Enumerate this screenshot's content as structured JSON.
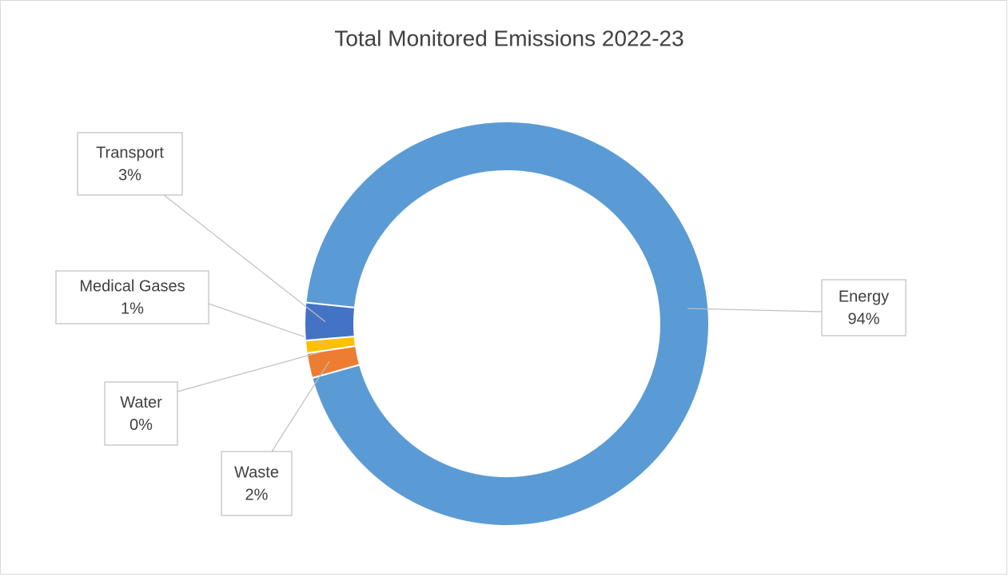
{
  "chart_data": {
    "type": "doughnut",
    "title": "Total Monitored Emissions 2022-23",
    "categories": [
      "Energy",
      "Waste",
      "Water",
      "Medical Gases",
      "Transport"
    ],
    "values": [
      94,
      2,
      0,
      1,
      3
    ],
    "value_labels": [
      "94%",
      "2%",
      "0%",
      "1%",
      "3%"
    ],
    "colors": [
      "#5b9bd5",
      "#ed7d31",
      "#a5a5a5",
      "#ffc000",
      "#4472c4"
    ]
  }
}
